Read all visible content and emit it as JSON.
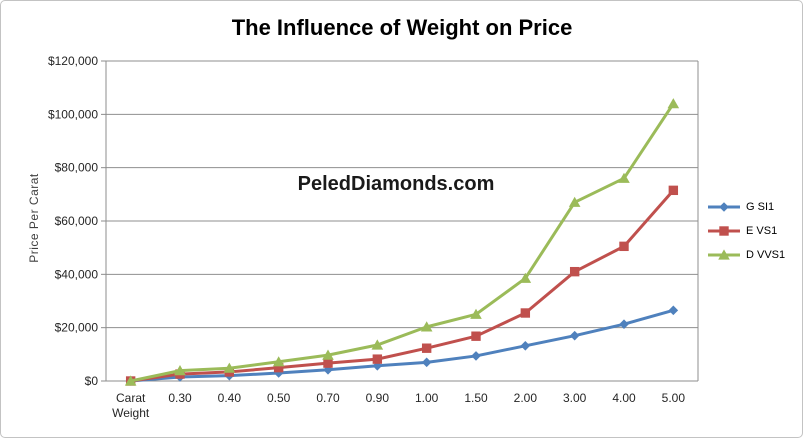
{
  "chart_data": {
    "type": "line",
    "title": "The Influence of Weight on Price",
    "watermark": "PeledDiamonds.com",
    "xlabel": "",
    "ylabel": "Price Per Carat",
    "categories": [
      "Carat Weight",
      "0.30",
      "0.40",
      "0.50",
      "0.70",
      "0.90",
      "1.00",
      "1.50",
      "2.00",
      "3.00",
      "4.00",
      "5.00"
    ],
    "series": [
      {
        "name": "G SI1",
        "color": "#4F81BD",
        "marker": "diamond",
        "values": [
          0,
          1500,
          2000,
          3000,
          4200,
          5700,
          7000,
          9400,
          13200,
          17000,
          21300,
          26500
        ]
      },
      {
        "name": "E VS1",
        "color": "#C0504D",
        "marker": "square",
        "values": [
          0,
          2600,
          3400,
          5000,
          6700,
          8200,
          12300,
          16800,
          25500,
          41000,
          50500,
          71500
        ]
      },
      {
        "name": "D VVS1",
        "color": "#9BBB59",
        "marker": "triangle",
        "values": [
          0,
          3900,
          4800,
          7200,
          9700,
          13500,
          20300,
          25000,
          38500,
          67000,
          76000,
          104000
        ]
      }
    ],
    "ylim": [
      0,
      120000
    ],
    "yticks": [
      {
        "value": 0,
        "label": "$0"
      },
      {
        "value": 20000,
        "label": "$20,000"
      },
      {
        "value": 40000,
        "label": "$40,000"
      },
      {
        "value": 60000,
        "label": "$60,000"
      },
      {
        "value": 80000,
        "label": "$80,000"
      },
      {
        "value": 100000,
        "label": "$100,000"
      },
      {
        "value": 120000,
        "label": "$120,000"
      }
    ],
    "grid": true,
    "legend_position": "right"
  },
  "colors": {
    "gridline": "#8f8f8f",
    "axis": "#8c8c8c",
    "tick_text": "#262626",
    "title_text": "#000000",
    "watermark_text": "#1a1a1a",
    "frame_border": "#c3c3c3",
    "series_blue": "#4F81BD",
    "series_red": "#C0504D",
    "series_green": "#9BBB59"
  }
}
